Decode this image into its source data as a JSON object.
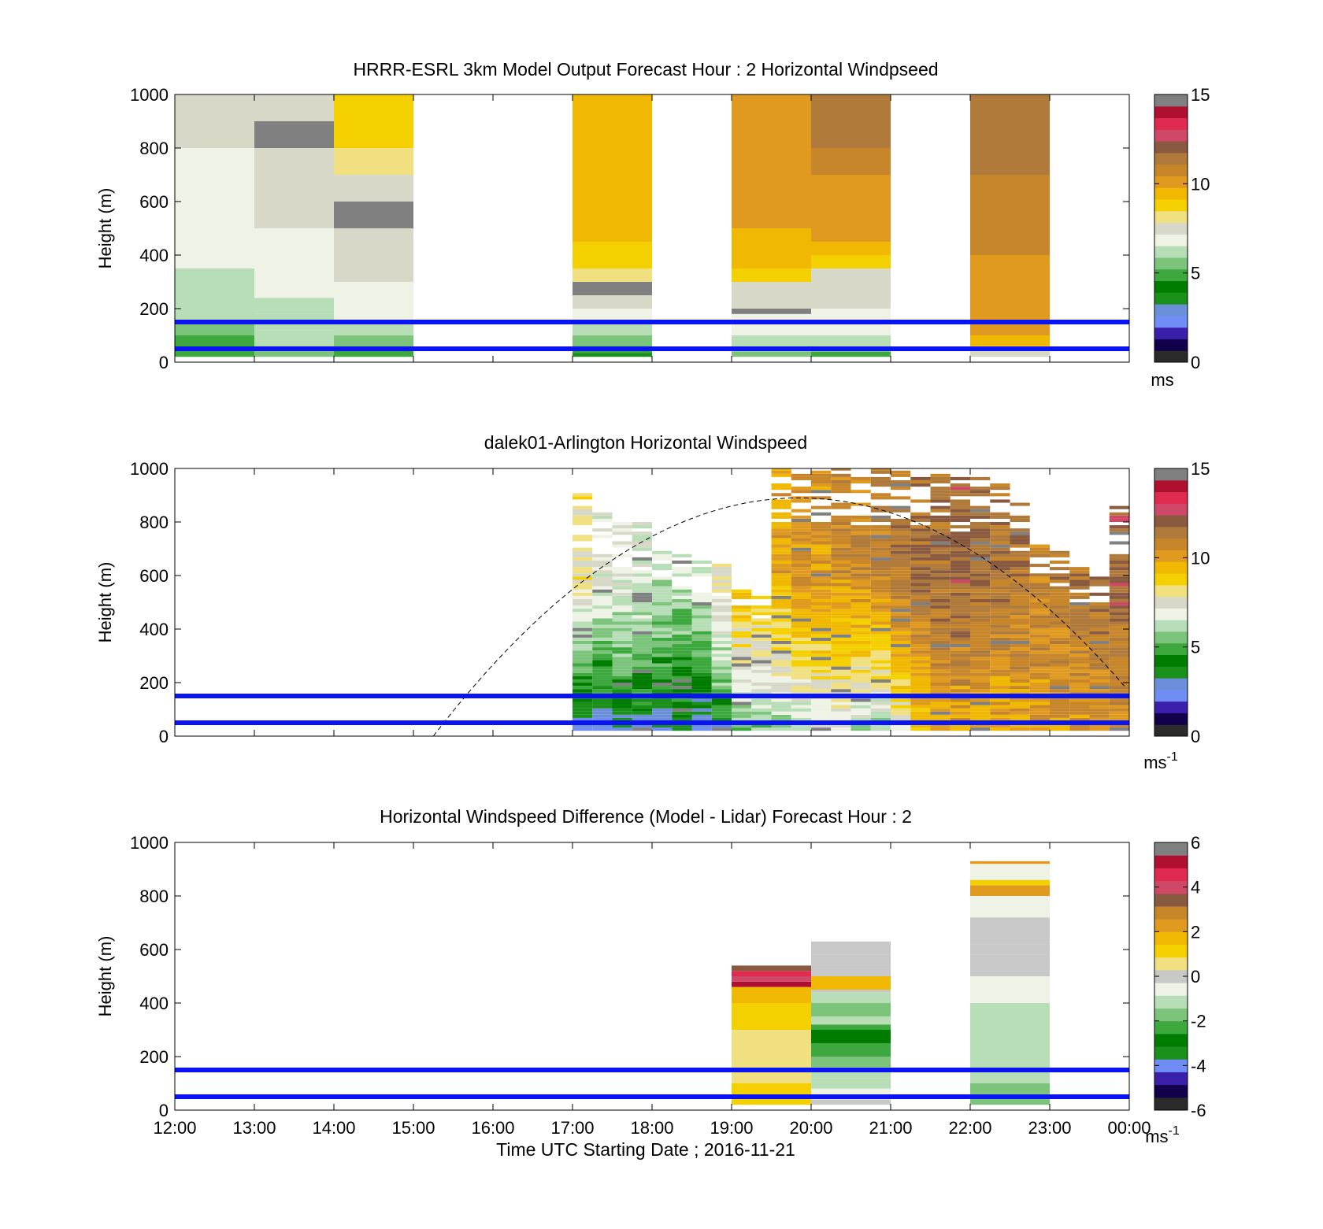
{
  "colormaps": {
    "speed": [
      "#2b2b2b",
      "#12004a",
      "#3a1faa",
      "#6f8df5",
      "#6b8fd8",
      "#1a8f1a",
      "#007d00",
      "#3da83d",
      "#7cc47c",
      "#b8deb8",
      "#eef3e6",
      "#d8d8c8",
      "#f0e080",
      "#f5d000",
      "#f0b800",
      "#e09a20",
      "#c8862a",
      "#b07a3a",
      "#8a5a40",
      "#d04868",
      "#e02a50",
      "#b01030",
      "#808080"
    ],
    "diff": [
      "#2b2b2b",
      "#12004a",
      "#3a1faa",
      "#6f8df5",
      "#1a8f1a",
      "#007d00",
      "#3da83d",
      "#7cc47c",
      "#b8deb8",
      "#eef3e6",
      "#c8c8c8",
      "#f0e080",
      "#f5d000",
      "#f0b800",
      "#e09a20",
      "#c8862a",
      "#8a5a40",
      "#d04868",
      "#e02a50",
      "#b01030",
      "#808080"
    ]
  },
  "chart_data": [
    {
      "type": "heatmap",
      "title": "HRRR-ESRL 3km Model Output   Forecast Hour : 2 Horizontal Windpseed",
      "ylabel": "Height (m)",
      "xlabel": "",
      "ylim": [
        0,
        1000
      ],
      "yticks": [
        "0",
        "200",
        "400",
        "600",
        "800",
        "1000"
      ],
      "xticks": [
        "12:00",
        "13:00",
        "14:00",
        "15:00",
        "16:00",
        "17:00",
        "18:00",
        "19:00",
        "20:00",
        "21:00",
        "22:00",
        "23:00",
        "00:00"
      ],
      "x_range_hours": [
        12,
        24
      ],
      "colorbar": {
        "min": 0,
        "max": 15,
        "ticks": [
          "0",
          "5",
          "10",
          "15"
        ],
        "unit": "ms"
      },
      "columns": [
        {
          "start": 12,
          "end": 13,
          "h": [
            20,
            50,
            100,
            150,
            200,
            250,
            300,
            350,
            400,
            450,
            500,
            600,
            700,
            800,
            900,
            1000
          ],
          "v": [
            5.0,
            5.2,
            5.6,
            5.9,
            6.2,
            6.4,
            6.5,
            6.6,
            6.7,
            6.8,
            6.9,
            7.0,
            7.1,
            7.2,
            7.3
          ]
        },
        {
          "start": 13,
          "end": 14,
          "h": [
            20,
            60,
            120,
            180,
            240,
            300,
            400,
            500,
            600,
            700,
            800,
            900,
            1000
          ],
          "v": [
            5.4,
            5.9,
            6.2,
            6.5,
            6.7,
            6.9,
            7.1,
            7.2,
            7.3,
            7.5,
            14.6,
            7.8
          ]
        },
        {
          "start": 14,
          "end": 15,
          "h": [
            20,
            50,
            100,
            150,
            200,
            250,
            300,
            350,
            400,
            500,
            600,
            700,
            800,
            900,
            1000
          ],
          "v": [
            5.0,
            5.7,
            6.2,
            6.6,
            6.9,
            7.1,
            7.3,
            7.5,
            7.6,
            14.6,
            7.8,
            8.1,
            8.6,
            9.0
          ]
        },
        {
          "start": 17,
          "end": 18,
          "h": [
            20,
            35,
            60,
            100,
            150,
            200,
            250,
            300,
            350,
            400,
            450,
            500,
            600,
            700,
            800,
            900,
            1000
          ],
          "v": [
            3.6,
            5.2,
            5.8,
            6.4,
            6.9,
            7.2,
            14.6,
            7.9,
            8.5,
            9.0,
            9.3,
            9.4,
            9.5,
            9.4,
            9.3,
            9.2
          ]
        },
        {
          "start": 19,
          "end": 20,
          "h": [
            20,
            40,
            100,
            150,
            180,
            200,
            250,
            300,
            350,
            400,
            450,
            500,
            600,
            700,
            800,
            900,
            1000
          ],
          "v": [
            5.6,
            6.2,
            6.7,
            7.0,
            14.6,
            7.4,
            7.8,
            8.6,
            9.2,
            9.5,
            9.7,
            9.8,
            9.9,
            10.1,
            10.2,
            10.4
          ]
        },
        {
          "start": 20,
          "end": 21,
          "h": [
            20,
            40,
            100,
            150,
            200,
            250,
            300,
            350,
            400,
            450,
            500,
            600,
            700,
            800,
            900,
            1000
          ],
          "v": [
            5.2,
            6.0,
            6.6,
            6.9,
            7.2,
            7.5,
            7.8,
            8.5,
            9.3,
            9.8,
            10.0,
            10.3,
            10.6,
            11.2,
            11.4
          ]
        },
        {
          "start": 22,
          "end": 23,
          "h": [
            20,
            40,
            60,
            100,
            150,
            200,
            300,
            400,
            500,
            600,
            700,
            800,
            900,
            1000
          ],
          "v": [
            7.2,
            8.0,
            9.3,
            9.8,
            10.0,
            10.2,
            10.4,
            10.6,
            10.8,
            11.0,
            11.2,
            11.4,
            11.6
          ]
        }
      ],
      "lines_m": [
        150,
        50
      ]
    },
    {
      "type": "heatmap",
      "title": "dalek01-Arlington  Horizontal Windspeed",
      "ylabel": "Height (m)",
      "xlabel": "",
      "ylim": [
        0,
        1000
      ],
      "yticks": [
        "0",
        "200",
        "400",
        "600",
        "800",
        "1000"
      ],
      "xticks": [
        "12:00",
        "13:00",
        "14:00",
        "15:00",
        "16:00",
        "17:00",
        "18:00",
        "19:00",
        "20:00",
        "21:00",
        "22:00",
        "23:00",
        "00:00"
      ],
      "x_range_hours": [
        12,
        24
      ],
      "colorbar": {
        "min": 0,
        "max": 15,
        "ticks": [
          "0",
          "5",
          "10",
          "15"
        ],
        "unit": "ms",
        "unit_sup": "-1"
      },
      "lidar_profiles": [
        {
          "t": 17.0,
          "top": 900,
          "low": 1.8,
          "high": 8.0
        },
        {
          "t": 17.25,
          "top": 860,
          "low": 2.2,
          "high": 7.0
        },
        {
          "t": 17.5,
          "top": 800,
          "low": 2.5,
          "high": 7.2
        },
        {
          "t": 17.75,
          "top": 790,
          "low": 2.6,
          "high": 6.8
        },
        {
          "t": 18.0,
          "top": 720,
          "low": 2.4,
          "high": 6.5
        },
        {
          "t": 18.25,
          "top": 700,
          "low": 2.8,
          "high": 6.4
        },
        {
          "t": 18.5,
          "top": 660,
          "low": 2.2,
          "high": 6.8
        },
        {
          "t": 18.75,
          "top": 650,
          "low": 3.2,
          "high": 8.0
        },
        {
          "t": 19.0,
          "top": 540,
          "low": 4.6,
          "high": 9.2
        },
        {
          "t": 19.25,
          "top": 530,
          "low": 5.0,
          "high": 9.0
        },
        {
          "t": 19.5,
          "top": 1000,
          "low": 5.2,
          "high": 9.8
        },
        {
          "t": 19.75,
          "top": 980,
          "low": 5.6,
          "high": 10.4
        },
        {
          "t": 20.0,
          "top": 1000,
          "low": 6.2,
          "high": 10.2
        },
        {
          "t": 20.25,
          "top": 1000,
          "low": 6.0,
          "high": 10.6
        },
        {
          "t": 20.5,
          "top": 1000,
          "low": 5.4,
          "high": 10.8
        },
        {
          "t": 20.75,
          "top": 1000,
          "low": 5.0,
          "high": 11.0
        },
        {
          "t": 21.0,
          "top": 1000,
          "low": 6.8,
          "high": 11.2
        },
        {
          "t": 21.25,
          "top": 980,
          "low": 8.6,
          "high": 11.4
        },
        {
          "t": 21.5,
          "top": 980,
          "low": 9.2,
          "high": 11.6
        },
        {
          "t": 21.75,
          "top": 970,
          "low": 9.4,
          "high": 11.8
        },
        {
          "t": 22.0,
          "top": 960,
          "low": 9.4,
          "high": 11.6
        },
        {
          "t": 22.25,
          "top": 940,
          "low": 9.4,
          "high": 11.4
        },
        {
          "t": 22.5,
          "top": 880,
          "low": 9.6,
          "high": 11.2
        },
        {
          "t": 22.75,
          "top": 740,
          "low": 9.8,
          "high": 11.0
        },
        {
          "t": 23.0,
          "top": 700,
          "low": 9.8,
          "high": 11.2
        },
        {
          "t": 23.25,
          "top": 640,
          "low": 10.0,
          "high": 11.4
        },
        {
          "t": 23.5,
          "top": 600,
          "low": 10.0,
          "high": 11.6
        },
        {
          "t": 23.75,
          "top": 860,
          "low": 10.2,
          "high": 12.0
        }
      ],
      "dashed_curve": {
        "start": 15.25,
        "end": 24.0,
        "peak_t": 19.85,
        "peak_m": 890
      },
      "lines_m": [
        150,
        50
      ]
    },
    {
      "type": "heatmap",
      "title": "Horizontal Windspeed Difference (Model - Lidar) Forecast Hour : 2",
      "ylabel": "Height (m)",
      "xlabel": "Time UTC  Starting Date ; 2016-11-21",
      "ylim": [
        0,
        1000
      ],
      "yticks": [
        "0",
        "200",
        "400",
        "600",
        "800",
        "1000"
      ],
      "xticks": [
        "12:00",
        "13:00",
        "14:00",
        "15:00",
        "16:00",
        "17:00",
        "18:00",
        "19:00",
        "20:00",
        "21:00",
        "22:00",
        "23:00",
        "00:00"
      ],
      "x_range_hours": [
        12,
        24
      ],
      "colorbar": {
        "min": -6,
        "max": 6,
        "ticks": [
          "-6",
          "-4",
          "-2",
          "0",
          "2",
          "4",
          "6"
        ],
        "unit": "ms",
        "unit_sup": "-1"
      },
      "columns": [
        {
          "start": 19,
          "end": 20,
          "h": [
            20,
            60,
            100,
            150,
            200,
            250,
            300,
            350,
            400,
            440,
            460,
            480,
            500,
            520,
            540
          ],
          "v": [
            1.4,
            1.2,
            0.8,
            0.4,
            0.3,
            0.5,
            0.9,
            1.3,
            1.6,
            1.8,
            5.2,
            3.8,
            4.6,
            3.6
          ]
        },
        {
          "start": 20,
          "end": 21,
          "h": [
            20,
            40,
            80,
            120,
            160,
            200,
            250,
            300,
            320,
            350,
            400,
            440,
            450,
            500,
            540,
            580,
            600,
            630
          ],
          "v": [
            -0.2,
            -0.6,
            -0.9,
            -1.4,
            -1.9,
            -2.3,
            -2.6,
            -2.4,
            -1.2,
            -1.8,
            -1.4,
            0.2,
            1.6,
            0.2,
            -0.1,
            -0.2,
            -0.1,
            0.0
          ]
        },
        {
          "start": 22,
          "end": 23,
          "h": [
            20,
            60,
            100,
            200,
            300,
            400,
            500,
            520,
            580,
            620,
            640,
            720,
            800,
            840,
            860,
            920,
            930
          ],
          "v": [
            -2.0,
            -1.6,
            -1.4,
            -1.2,
            -1.0,
            -0.7,
            -0.2,
            -0.1,
            -0.1,
            -0.2,
            0.05,
            -0.6,
            2.4,
            1.0,
            -0.4,
            2.4,
            2.6
          ]
        }
      ],
      "lines_m": [
        150,
        50
      ]
    }
  ]
}
